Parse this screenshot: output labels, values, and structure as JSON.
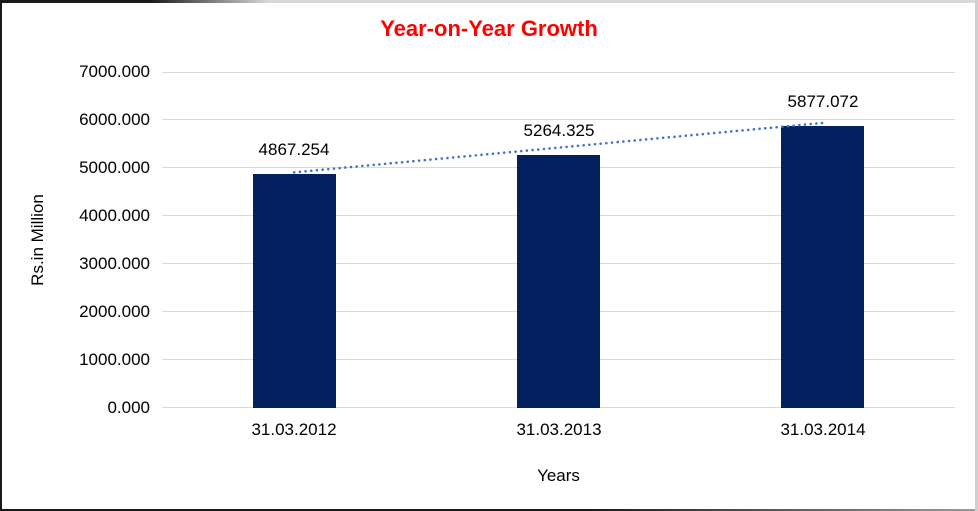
{
  "chart_data": {
    "type": "bar",
    "title": "Year-on-Year Growth",
    "title_color": "#FF0000",
    "xlabel": "Years",
    "ylabel": "Rs.in Million",
    "categories": [
      "31.03.2012",
      "31.03.2013",
      "31.03.2014"
    ],
    "series": [
      {
        "name": "growth-bars",
        "type": "bar",
        "color": "#03215F",
        "values": [
          4867.254,
          5264.325,
          5877.072
        ]
      },
      {
        "name": "trendline",
        "type": "dotted-line",
        "color": "#4472C4",
        "values": [
          4867.254,
          5264.325,
          5877.072
        ]
      }
    ],
    "value_labels": [
      "4867.254",
      "5264.325",
      "5877.072"
    ],
    "ylim": [
      0,
      7000
    ],
    "y_tick_step": 1000,
    "y_tick_labels": [
      "0.000",
      "1000.000",
      "2000.000",
      "3000.000",
      "4000.000",
      "5000.000",
      "6000.000",
      "7000.000"
    ],
    "grid": true,
    "legend_position": "none",
    "colors": {
      "gridline": "#d9d9d9",
      "axis_text": "#000000",
      "background": "#ffffff"
    }
  }
}
